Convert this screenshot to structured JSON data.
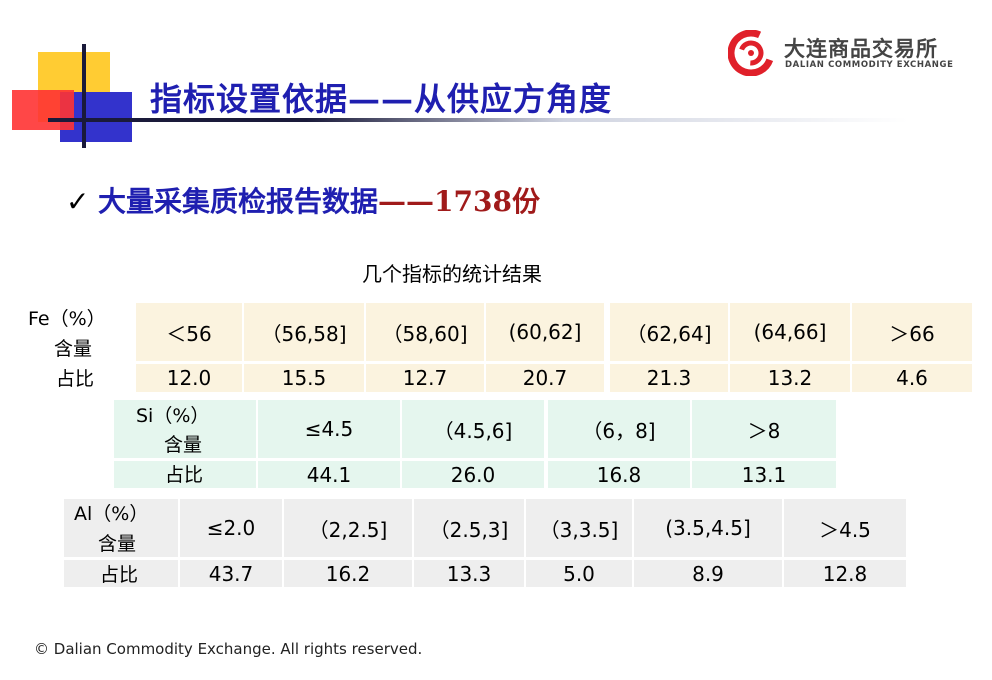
{
  "header": {
    "title": "指标设置依据——从供应方角度",
    "logo": {
      "name_cn": "大连商品交易所",
      "name_en": "DALIAN COMMODITY EXCHANGE",
      "icon": "dce-logo-icon",
      "color": "#e0202a"
    }
  },
  "subtitle": {
    "check_icon": "checkmark-icon",
    "check": "✓",
    "main": "大量采集质检报告数据",
    "dash": "——",
    "count": "1738份"
  },
  "caption": "几个指标的统计结果",
  "tables": {
    "fe": {
      "label_element": "Fe（%）",
      "label_content": "含量",
      "label_share": "占比",
      "ranges": [
        "＜56",
        "（56,58]",
        "（58,60]",
        "(60,62]",
        "（62,64]",
        "(64,66]",
        "＞66"
      ],
      "values": [
        "12.0",
        "15.5",
        "12.7",
        "20.7",
        "21.3",
        "13.2",
        "4.6"
      ]
    },
    "si": {
      "label_element": "Si（%）",
      "label_content": "含量",
      "label_share": "占比",
      "ranges": [
        "≤4.5",
        "（4.5,6]",
        "（6，8]",
        "＞8"
      ],
      "values": [
        "44.1",
        "26.0",
        "16.8",
        "13.1"
      ]
    },
    "al": {
      "label_element": "Al（%）",
      "label_content": "含量",
      "label_share": "占比",
      "ranges": [
        "≤2.0",
        "（2,2.5]",
        "（2.5,3]",
        "（3,3.5]",
        "(3.5,4.5]",
        "＞4.5"
      ],
      "values": [
        "43.7",
        "16.2",
        "13.3",
        "5.0",
        "8.9",
        "12.8"
      ]
    }
  },
  "footer": "© Dalian Commodity Exchange. All rights reserved."
}
